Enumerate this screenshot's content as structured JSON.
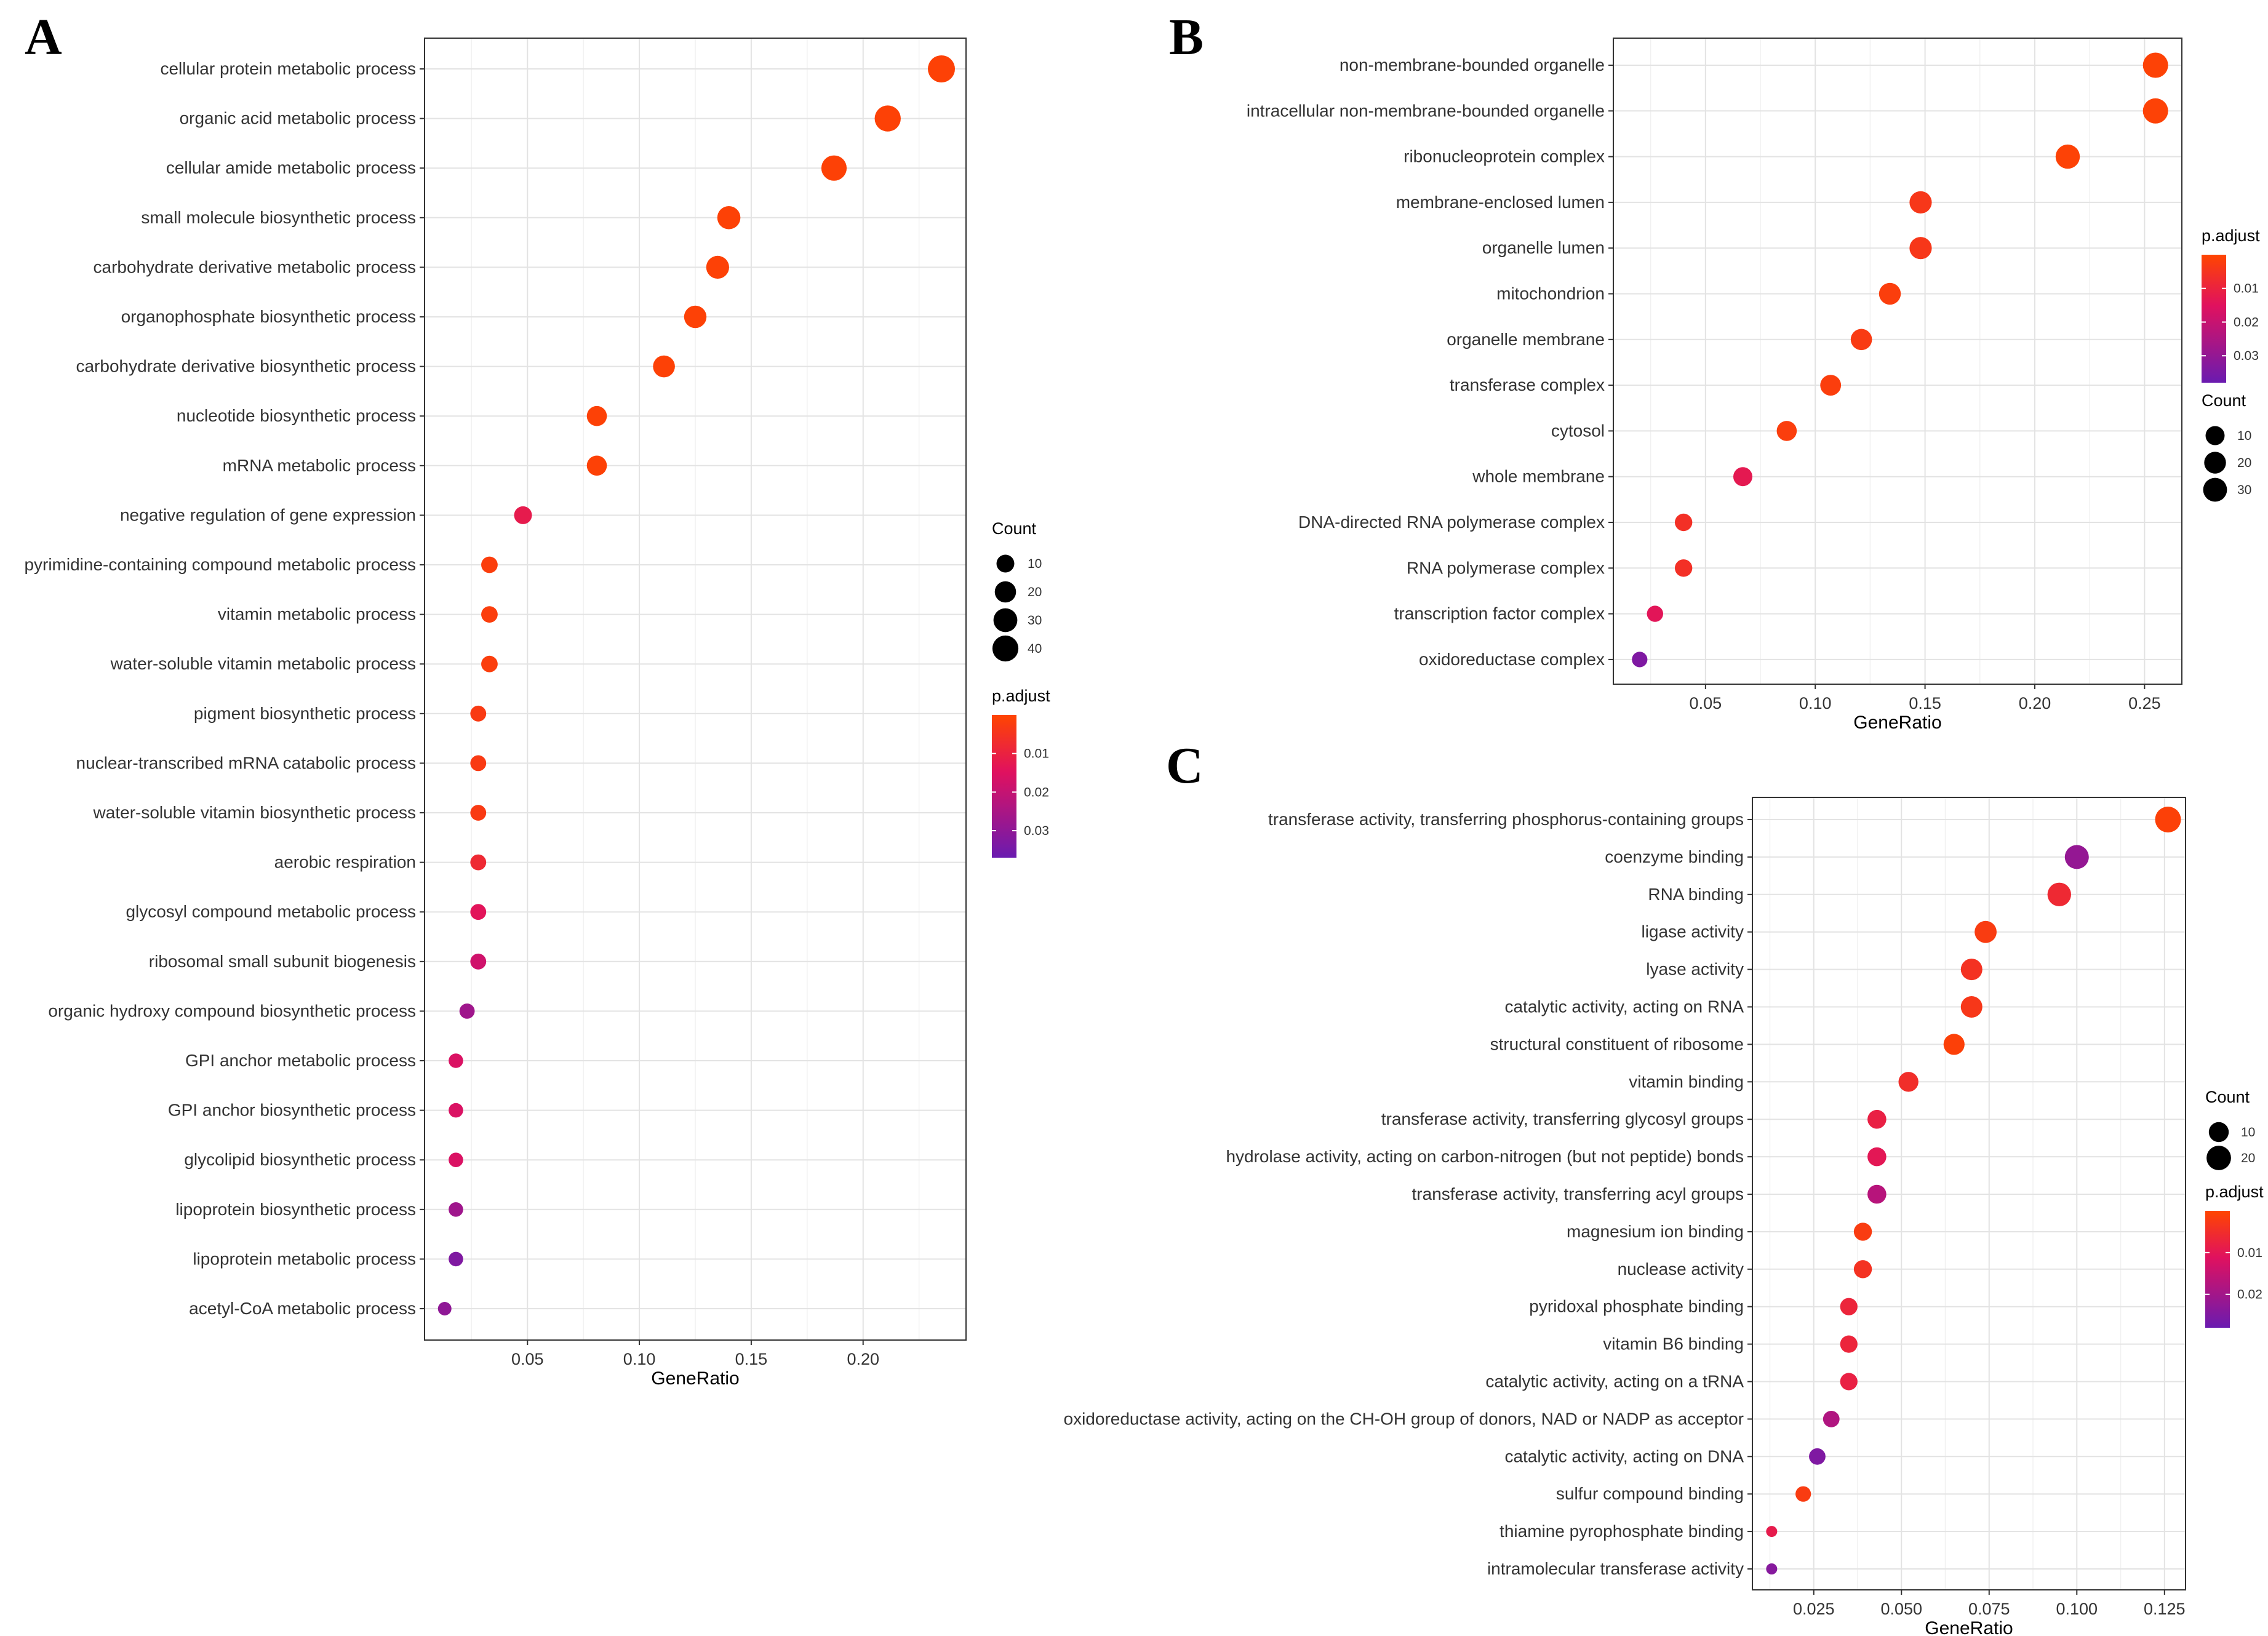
{
  "chart_data": [
    {
      "type": "scatter",
      "panel": "A",
      "xlabel": "GeneRatio",
      "xticks": [
        0.05,
        0.1,
        0.15,
        0.2
      ],
      "xtick_labels": [
        "0.05",
        "0.10",
        "0.15",
        "0.20"
      ],
      "xlim": [
        0.004,
        0.246
      ],
      "grid": true,
      "size_legend": {
        "title": "Count",
        "values": [
          10,
          20,
          30,
          40
        ],
        "labels": [
          "10",
          "20",
          "30",
          "40"
        ]
      },
      "color_legend": {
        "title": "p.adjust",
        "range": [
          0,
          0.037
        ],
        "ticks": [
          0.01,
          0.02,
          0.03
        ],
        "labels": [
          "0.01",
          "0.02",
          "0.03"
        ],
        "colors": [
          "#ff4500",
          "#e0115f",
          "#6a1bb0"
        ]
      },
      "terms": [
        {
          "label": "cellular protein metabolic process",
          "x": 0.235,
          "count": 46,
          "padj": 0.001
        },
        {
          "label": "organic acid metabolic process",
          "x": 0.211,
          "count": 41,
          "padj": 0.001
        },
        {
          "label": "cellular amide metabolic process",
          "x": 0.187,
          "count": 37,
          "padj": 0.001
        },
        {
          "label": "small molecule biosynthetic process",
          "x": 0.14,
          "count": 27,
          "padj": 0.001
        },
        {
          "label": "carbohydrate derivative metabolic process",
          "x": 0.135,
          "count": 26,
          "padj": 0.001
        },
        {
          "label": "organophosphate biosynthetic process",
          "x": 0.125,
          "count": 24,
          "padj": 0.001
        },
        {
          "label": "carbohydrate derivative biosynthetic process",
          "x": 0.111,
          "count": 22,
          "padj": 0.001
        },
        {
          "label": "nucleotide biosynthetic process",
          "x": 0.081,
          "count": 16,
          "padj": 0.001
        },
        {
          "label": "mRNA metabolic process",
          "x": 0.081,
          "count": 16,
          "padj": 0.001
        },
        {
          "label": "negative regulation of gene expression",
          "x": 0.048,
          "count": 10,
          "padj": 0.012
        },
        {
          "label": "pyrimidine-containing compound metabolic process",
          "x": 0.033,
          "count": 7,
          "padj": 0.002
        },
        {
          "label": "vitamin metabolic process",
          "x": 0.033,
          "count": 7,
          "padj": 0.002
        },
        {
          "label": "water-soluble vitamin metabolic process",
          "x": 0.033,
          "count": 7,
          "padj": 0.002
        },
        {
          "label": "pigment biosynthetic process",
          "x": 0.028,
          "count": 6,
          "padj": 0.003
        },
        {
          "label": "nuclear-transcribed mRNA catabolic process",
          "x": 0.028,
          "count": 6,
          "padj": 0.003
        },
        {
          "label": "water-soluble vitamin biosynthetic process",
          "x": 0.028,
          "count": 6,
          "padj": 0.003
        },
        {
          "label": "aerobic respiration",
          "x": 0.028,
          "count": 6,
          "padj": 0.008
        },
        {
          "label": "glycosyl compound metabolic process",
          "x": 0.028,
          "count": 6,
          "padj": 0.014
        },
        {
          "label": "ribosomal small subunit biogenesis",
          "x": 0.028,
          "count": 6,
          "padj": 0.018
        },
        {
          "label": "organic hydroxy compound biosynthetic process",
          "x": 0.023,
          "count": 5,
          "padj": 0.027
        },
        {
          "label": "GPI anchor metabolic process",
          "x": 0.018,
          "count": 4,
          "padj": 0.016
        },
        {
          "label": "GPI anchor biosynthetic process",
          "x": 0.018,
          "count": 4,
          "padj": 0.016
        },
        {
          "label": "glycolipid biosynthetic process",
          "x": 0.018,
          "count": 4,
          "padj": 0.016
        },
        {
          "label": "lipoprotein biosynthetic process",
          "x": 0.018,
          "count": 4,
          "padj": 0.027
        },
        {
          "label": "lipoprotein metabolic process",
          "x": 0.018,
          "count": 4,
          "padj": 0.033
        },
        {
          "label": "acetyl-CoA metabolic process",
          "x": 0.013,
          "count": 3,
          "padj": 0.03
        }
      ]
    },
    {
      "type": "scatter",
      "panel": "B",
      "xlabel": "GeneRatio",
      "xticks": [
        0.05,
        0.1,
        0.15,
        0.2,
        0.25
      ],
      "xtick_labels": [
        "0.05",
        "0.10",
        "0.15",
        "0.20",
        "0.25"
      ],
      "xlim": [
        0.008,
        0.267
      ],
      "grid": true,
      "size_legend": {
        "title": "Count",
        "values": [
          10,
          20,
          30
        ],
        "labels": [
          "10",
          "20",
          "30"
        ]
      },
      "color_legend": {
        "title": "p.adjust",
        "range": [
          0,
          0.038
        ],
        "ticks": [
          0.01,
          0.02,
          0.03
        ],
        "labels": [
          "0.01",
          "0.02",
          "0.03"
        ],
        "colors": [
          "#ff4500",
          "#e0115f",
          "#6a1bb0"
        ]
      },
      "terms": [
        {
          "label": "non-membrane-bounded organelle",
          "x": 0.255,
          "count": 38,
          "padj": 0.001
        },
        {
          "label": "intracellular non-membrane-bounded organelle",
          "x": 0.255,
          "count": 38,
          "padj": 0.001
        },
        {
          "label": "ribonucleoprotein complex",
          "x": 0.215,
          "count": 32,
          "padj": 0.001
        },
        {
          "label": "membrane-enclosed lumen",
          "x": 0.148,
          "count": 22,
          "padj": 0.004
        },
        {
          "label": "organelle lumen",
          "x": 0.148,
          "count": 22,
          "padj": 0.004
        },
        {
          "label": "mitochondrion",
          "x": 0.134,
          "count": 20,
          "padj": 0.002
        },
        {
          "label": "organelle membrane",
          "x": 0.121,
          "count": 18,
          "padj": 0.003
        },
        {
          "label": "transferase complex",
          "x": 0.107,
          "count": 16,
          "padj": 0.002
        },
        {
          "label": "cytosol",
          "x": 0.087,
          "count": 13,
          "padj": 0.002
        },
        {
          "label": "whole membrane",
          "x": 0.067,
          "count": 10,
          "padj": 0.013
        },
        {
          "label": "DNA-directed RNA polymerase complex",
          "x": 0.04,
          "count": 6,
          "padj": 0.006
        },
        {
          "label": "RNA polymerase complex",
          "x": 0.04,
          "count": 6,
          "padj": 0.006
        },
        {
          "label": "transcription factor complex",
          "x": 0.027,
          "count": 4,
          "padj": 0.014
        },
        {
          "label": "oxidoreductase complex",
          "x": 0.02,
          "count": 3,
          "padj": 0.034
        }
      ]
    },
    {
      "type": "scatter",
      "panel": "C",
      "xlabel": "GeneRatio",
      "xticks": [
        0.025,
        0.05,
        0.075,
        0.1,
        0.125
      ],
      "xtick_labels": [
        "0.025",
        "0.050",
        "0.075",
        "0.100",
        "0.125"
      ],
      "xlim": [
        0.0075,
        0.131
      ],
      "grid": true,
      "size_legend": {
        "title": "Count",
        "values": [
          10,
          20
        ],
        "labels": [
          "10",
          "20"
        ]
      },
      "color_legend": {
        "title": "p.adjust",
        "range": [
          0,
          0.028
        ],
        "ticks": [
          0.01,
          0.02
        ],
        "labels": [
          "0.01",
          "0.02"
        ],
        "colors": [
          "#ff4500",
          "#e0115f",
          "#6a1bb0"
        ]
      },
      "terms": [
        {
          "label": "transferase activity, transferring phosphorus-containing groups",
          "x": 0.126,
          "count": 24,
          "padj": 0.001
        },
        {
          "label": "coenzyme binding",
          "x": 0.1,
          "count": 19,
          "padj": 0.022
        },
        {
          "label": "RNA binding",
          "x": 0.095,
          "count": 18,
          "padj": 0.006
        },
        {
          "label": "ligase activity",
          "x": 0.074,
          "count": 14,
          "padj": 0.002
        },
        {
          "label": "lyase activity",
          "x": 0.07,
          "count": 13,
          "padj": 0.004
        },
        {
          "label": "catalytic activity, acting on RNA",
          "x": 0.07,
          "count": 13,
          "padj": 0.003
        },
        {
          "label": "structural constituent of ribosome",
          "x": 0.065,
          "count": 12,
          "padj": 0.001
        },
        {
          "label": "vitamin binding",
          "x": 0.052,
          "count": 10,
          "padj": 0.005
        },
        {
          "label": "transferase activity, transferring glycosyl groups",
          "x": 0.043,
          "count": 8,
          "padj": 0.008
        },
        {
          "label": "hydrolase activity, acting on carbon-nitrogen (but not peptide) bonds",
          "x": 0.043,
          "count": 8,
          "padj": 0.01
        },
        {
          "label": "transferase activity, transferring acyl groups",
          "x": 0.043,
          "count": 8,
          "padj": 0.017
        },
        {
          "label": "magnesium ion binding",
          "x": 0.039,
          "count": 7,
          "padj": 0.002
        },
        {
          "label": "nuclease activity",
          "x": 0.039,
          "count": 7,
          "padj": 0.004
        },
        {
          "label": "pyridoxal phosphate binding",
          "x": 0.035,
          "count": 6,
          "padj": 0.007
        },
        {
          "label": "vitamin B6 binding",
          "x": 0.035,
          "count": 6,
          "padj": 0.007
        },
        {
          "label": "catalytic activity, acting on a tRNA",
          "x": 0.035,
          "count": 6,
          "padj": 0.008
        },
        {
          "label": "oxidoreductase activity, acting on the CH-OH group of donors, NAD or NADP as acceptor",
          "x": 0.03,
          "count": 5,
          "padj": 0.018
        },
        {
          "label": "catalytic activity, acting on DNA",
          "x": 0.026,
          "count": 5,
          "padj": 0.025
        },
        {
          "label": "sulfur compound binding",
          "x": 0.022,
          "count": 4,
          "padj": 0.002
        },
        {
          "label": "thiamine pyrophosphate binding",
          "x": 0.013,
          "count": 2,
          "padj": 0.009
        },
        {
          "label": "intramolecular transferase activity",
          "x": 0.013,
          "count": 2,
          "padj": 0.024
        }
      ]
    }
  ]
}
